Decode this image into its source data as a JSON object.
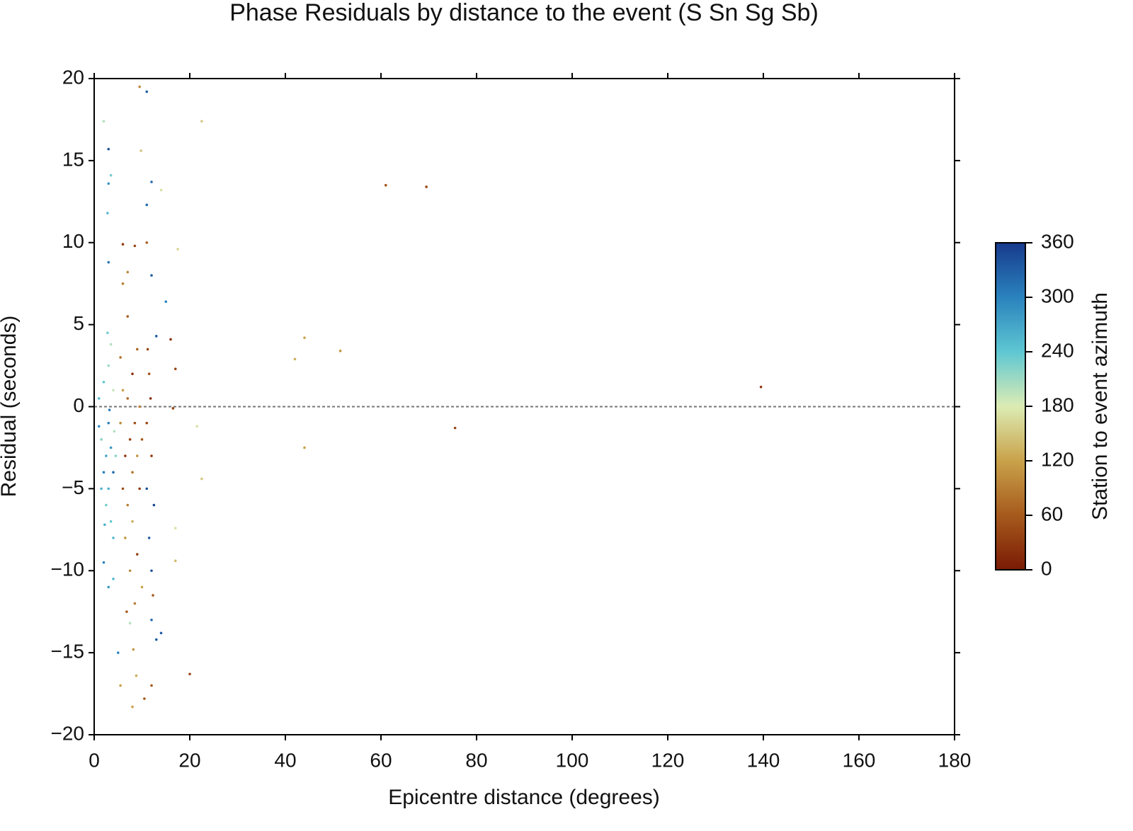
{
  "chart_data": {
    "type": "scatter",
    "title": "Phase Residuals by distance to the event (S Sn Sg Sb)",
    "x_label": "Epicentre distance (degrees)",
    "y_label": "Residual (seconds)",
    "xlim": [
      0,
      180
    ],
    "xticks": [
      0,
      20,
      40,
      60,
      80,
      100,
      120,
      140,
      160,
      180
    ],
    "ylim": [
      -20,
      20
    ],
    "yticks": [
      {
        "value": -20,
        "label": "−20"
      },
      {
        "value": -15,
        "label": "−15"
      },
      {
        "value": -10,
        "label": "−10"
      },
      {
        "value": -5,
        "label": "−5"
      },
      0,
      5,
      10,
      15,
      20
    ],
    "zero_line": true,
    "colorbar": {
      "label": "Station to event azimuth",
      "lim": [
        0,
        360
      ],
      "ticks": [
        0,
        60,
        120,
        180,
        240,
        300,
        360
      ],
      "colors": [
        "#7a1a05",
        "#a65a1c",
        "#c9a24a",
        "#dcecb4",
        "#5ec7d2",
        "#2a82bd",
        "#173a8c"
      ]
    },
    "x": [
      9.5,
      11,
      2,
      22.5,
      3,
      9.8,
      3.5,
      3,
      12,
      14,
      2.8,
      11,
      61,
      69.5,
      44,
      42,
      51.5,
      139.5,
      75.5,
      44,
      20,
      21.5,
      22.5,
      17,
      17,
      16.5,
      16,
      17,
      15,
      5.5,
      8,
      10.5,
      12,
      5,
      7.5,
      13,
      14,
      8.5,
      6,
      11,
      17.5,
      3,
      12,
      13,
      1,
      1.5,
      2,
      2,
      2.5,
      2.5,
      3,
      3,
      3,
      3.5,
      3.5,
      3.5,
      4,
      4,
      4,
      4.5,
      2,
      3,
      4,
      1.5,
      2.8,
      3.2,
      4.2,
      1,
      2.2,
      5.5,
      5.5,
      6,
      6,
      6.5,
      6.5,
      7,
      7,
      7,
      7.5,
      7.5,
      8,
      8,
      8,
      8.5,
      8.5,
      9,
      9,
      9,
      9.5,
      9.5,
      10,
      10,
      6,
      7,
      8.2,
      8.8,
      6.8,
      11,
      11,
      11.5,
      11.5,
      12,
      12,
      12,
      12.5,
      11.8,
      12.3,
      11.2
    ],
    "values": [
      19.5,
      19.2,
      17.4,
      17.4,
      15.7,
      15.6,
      14.1,
      13.6,
      13.7,
      13.2,
      11.8,
      12.3,
      13.5,
      13.4,
      4.2,
      2.9,
      3.4,
      1.2,
      -1.3,
      -2.5,
      -16.3,
      -1.2,
      -4.4,
      -7.4,
      -9.4,
      -0.1,
      4.1,
      2.3,
      6.4,
      -17,
      -18.3,
      -17.8,
      -17,
      -15,
      -13.2,
      -14.2,
      -13.8,
      9.8,
      9.9,
      10,
      9.6,
      8.8,
      8,
      4.3,
      0.5,
      -2,
      -4,
      1.5,
      -3,
      -6,
      2.5,
      -1,
      -5,
      3.8,
      -2.5,
      -7,
      1,
      -4,
      -8,
      -3,
      -9.5,
      -11,
      -10.5,
      -5,
      4.5,
      -0.2,
      -1.5,
      -1.2,
      -7.2,
      -1,
      3,
      -5,
      1,
      -3,
      -8,
      0.5,
      -6,
      5.5,
      -2,
      -10,
      -4,
      2,
      -7,
      -1,
      -12,
      -3,
      3.5,
      -9,
      -5,
      0,
      -2,
      -11,
      7.5,
      8.2,
      -14.8,
      -16.4,
      -12.5,
      -1,
      -5,
      2,
      -8,
      -3,
      -10,
      -13,
      -6,
      0.5,
      -11.5,
      3.5
    ],
    "azimuth": [
      100,
      330,
      200,
      150,
      340,
      150,
      230,
      280,
      320,
      170,
      250,
      320,
      50,
      40,
      120,
      130,
      110,
      30,
      40,
      120,
      40,
      170,
      150,
      170,
      140,
      40,
      20,
      40,
      300,
      120,
      120,
      60,
      60,
      300,
      200,
      330,
      330,
      40,
      30,
      60,
      160,
      310,
      330,
      330,
      250,
      220,
      300,
      240,
      270,
      230,
      210,
      300,
      260,
      200,
      280,
      240,
      190,
      320,
      250,
      220,
      300,
      280,
      250,
      260,
      230,
      310,
      200,
      290,
      260,
      100,
      80,
      50,
      120,
      30,
      110,
      70,
      90,
      60,
      40,
      100,
      80,
      20,
      130,
      50,
      90,
      110,
      70,
      40,
      30,
      90,
      60,
      120,
      90,
      100,
      110,
      130,
      60,
      40,
      340,
      50,
      330,
      30,
      340,
      320,
      350,
      20,
      60,
      40
    ]
  }
}
